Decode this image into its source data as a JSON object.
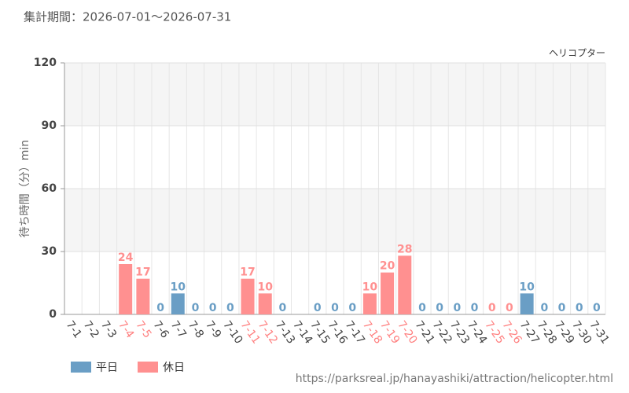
{
  "chart_data": {
    "type": "bar",
    "title": "集計期間：2026-07-01～2026-07-31",
    "subtitle": "ヘリコプター",
    "y_label": "待ち時間（分）min",
    "source": "https://parksreal.jp/hanayashiki/attraction/helicopter.html",
    "categories": [
      "7-1",
      "7-2",
      "7-3",
      "7-4",
      "7-5",
      "7-6",
      "7-7",
      "7-8",
      "7-9",
      "7-10",
      "7-11",
      "7-12",
      "7-13",
      "7-14",
      "7-15",
      "7-16",
      "7-17",
      "7-18",
      "7-19",
      "7-20",
      "7-21",
      "7-22",
      "7-23",
      "7-24",
      "7-25",
      "7-26",
      "7-27",
      "7-28",
      "7-29",
      "7-30",
      "7-31"
    ],
    "series": [
      {
        "name": "平日",
        "color": "#6a9ec5",
        "values": [
          null,
          null,
          null,
          null,
          null,
          0,
          10,
          0,
          0,
          0,
          null,
          null,
          0,
          null,
          0,
          0,
          0,
          null,
          null,
          null,
          0,
          0,
          0,
          0,
          null,
          null,
          10,
          0,
          0,
          0,
          0
        ]
      },
      {
        "name": "休日",
        "color": "#ff9090",
        "values": [
          null,
          null,
          null,
          24,
          17,
          null,
          null,
          null,
          null,
          null,
          17,
          10,
          null,
          null,
          null,
          null,
          null,
          10,
          20,
          28,
          null,
          null,
          null,
          null,
          0,
          0,
          null,
          null,
          null,
          null,
          null
        ]
      }
    ],
    "ylim": [
      0,
      120
    ],
    "yticks": [
      0,
      30,
      60,
      90,
      120
    ],
    "grid": true
  }
}
